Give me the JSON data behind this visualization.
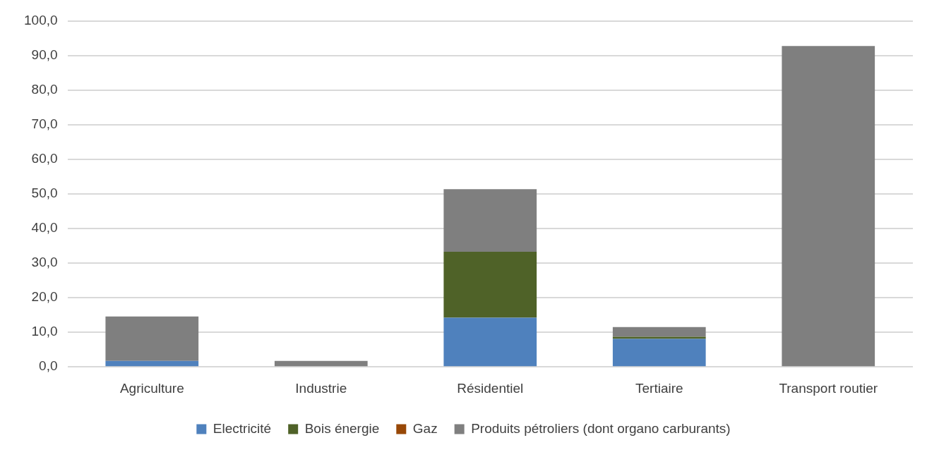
{
  "chart_data": {
    "type": "bar",
    "stacked": true,
    "categories": [
      "Agriculture",
      "Industrie",
      "Résidentiel",
      "Tertiaire",
      "Transport routier"
    ],
    "series": [
      {
        "name": "Electricité",
        "color": "#4f81bd",
        "values": [
          1.7,
          0,
          14.2,
          8.1,
          0
        ]
      },
      {
        "name": "Bois énergie",
        "color": "#4f6228",
        "values": [
          0,
          0,
          19.1,
          0.6,
          0
        ]
      },
      {
        "name": "Gaz",
        "color": "#984807",
        "values": [
          0,
          0,
          0,
          0,
          0
        ]
      },
      {
        "name": "Produits pétroliers (dont organo carburants)",
        "color": "#7f7f7f",
        "values": [
          12.9,
          1.7,
          18.1,
          2.8,
          92.8
        ]
      }
    ],
    "ylim": [
      0,
      100
    ],
    "yticks": [
      {
        "value": 0,
        "label": "0,0"
      },
      {
        "value": 10,
        "label": "10,0"
      },
      {
        "value": 20,
        "label": "20,0"
      },
      {
        "value": 30,
        "label": "30,0"
      },
      {
        "value": 40,
        "label": "40,0"
      },
      {
        "value": 50,
        "label": "50,0"
      },
      {
        "value": 60,
        "label": "60,0"
      },
      {
        "value": 70,
        "label": "70,0"
      },
      {
        "value": 80,
        "label": "80,0"
      },
      {
        "value": 90,
        "label": "90,0"
      },
      {
        "value": 100,
        "label": "100,0"
      }
    ],
    "grid": "y",
    "legend": "bottom"
  }
}
